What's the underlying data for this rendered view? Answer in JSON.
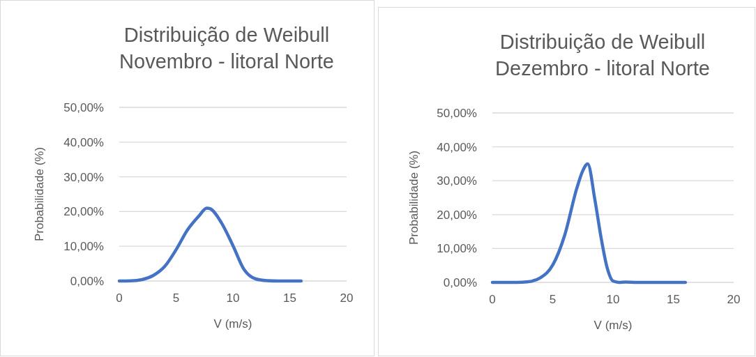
{
  "chart_data": [
    {
      "type": "line",
      "title": "Distribuição de Weibull\nNovembro - litoral Norte",
      "xlabel": "V (m/s)",
      "ylabel": "Probabilidade (%)",
      "xlim": [
        0,
        20
      ],
      "xticks": [
        0,
        5,
        10,
        15,
        20
      ],
      "ylim": [
        0,
        50
      ],
      "yticks": [
        {
          "value": 0,
          "label": "0,00%"
        },
        {
          "value": 10,
          "label": "10,00%"
        },
        {
          "value": 20,
          "label": "20,00%"
        },
        {
          "value": 30,
          "label": "30,00%"
        },
        {
          "value": 40,
          "label": "40,00%"
        },
        {
          "value": 50,
          "label": "50,00%"
        }
      ],
      "grid": "y",
      "legend": false,
      "marker": "none",
      "line_style": "solid",
      "series": [
        {
          "color": "#4472c4",
          "x": [
            0,
            1,
            2,
            3,
            4,
            5,
            6,
            7,
            7.7,
            8,
            9,
            10,
            11,
            12,
            13,
            14,
            15,
            16
          ],
          "values": [
            0,
            0.05,
            0.4,
            1.6,
            4.2,
            9,
            14.7,
            18.7,
            21,
            20.8,
            16.7,
            10.2,
            3.2,
            0.6,
            0.1,
            0,
            0,
            0
          ]
        }
      ]
    },
    {
      "type": "line",
      "title": "Distribuição de Weibull\nDezembro - litoral Norte",
      "xlabel": "V (m/s)",
      "ylabel": "Probabilidade (%)",
      "xlim": [
        0,
        20
      ],
      "xticks": [
        0,
        5,
        10,
        15,
        20
      ],
      "ylim": [
        0,
        50
      ],
      "yticks": [
        {
          "value": 0,
          "label": "0,00%"
        },
        {
          "value": 10,
          "label": "10,00%"
        },
        {
          "value": 20,
          "label": "20,00%"
        },
        {
          "value": 30,
          "label": "30,00%"
        },
        {
          "value": 40,
          "label": "40,00%"
        },
        {
          "value": 50,
          "label": "50,00%"
        }
      ],
      "grid": "y",
      "legend": false,
      "marker": "none",
      "line_style": "solid",
      "series": [
        {
          "color": "#4472c4",
          "x": [
            0,
            1,
            2,
            3,
            4,
            5,
            6,
            7,
            7.5,
            7.9,
            8.5,
            9,
            9.5,
            10,
            10.5,
            11,
            12,
            13,
            14,
            15,
            16
          ],
          "values": [
            0,
            0,
            0,
            0.2,
            1.4,
            5.1,
            14,
            27.8,
            33,
            35,
            24.3,
            13.4,
            4.5,
            0.4,
            0,
            0.1,
            0,
            0,
            0,
            0,
            0
          ]
        }
      ]
    }
  ]
}
